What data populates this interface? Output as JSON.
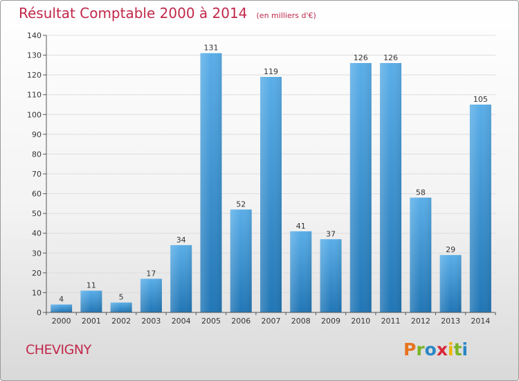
{
  "title": "Résultat Comptable 2000 à 2014",
  "subtitle": "(en milliers d'€)",
  "commune": "CHEVIGNY",
  "logo": {
    "letters": [
      "P",
      "r",
      "o",
      "x",
      "i",
      "t",
      "i"
    ],
    "colors": [
      "#e8731e",
      "#7ab526",
      "#2a86c6",
      "#d9283a",
      "#f0b400",
      "#7ab526",
      "#2a86c6"
    ]
  },
  "chart_data": {
    "type": "bar",
    "title": "Résultat Comptable 2000 à 2014",
    "subtitle": "(en milliers d'€)",
    "xlabel": "",
    "ylabel": "",
    "categories": [
      "2000",
      "2001",
      "2002",
      "2003",
      "2004",
      "2005",
      "2006",
      "2007",
      "2008",
      "2009",
      "2010",
      "2011",
      "2012",
      "2013",
      "2014"
    ],
    "values": [
      4,
      11,
      5,
      17,
      34,
      131,
      52,
      119,
      41,
      37,
      126,
      126,
      58,
      29,
      105
    ],
    "ylim": [
      0,
      140
    ],
    "yticks": [
      0,
      10,
      20,
      30,
      40,
      50,
      60,
      70,
      80,
      90,
      100,
      110,
      120,
      130,
      140
    ],
    "grid": true,
    "colors": {
      "bar_top": "#5aaee8",
      "bar_bottom": "#2176b5",
      "grid": "#dddddd",
      "axis": "#555555",
      "label": "#333333"
    }
  }
}
